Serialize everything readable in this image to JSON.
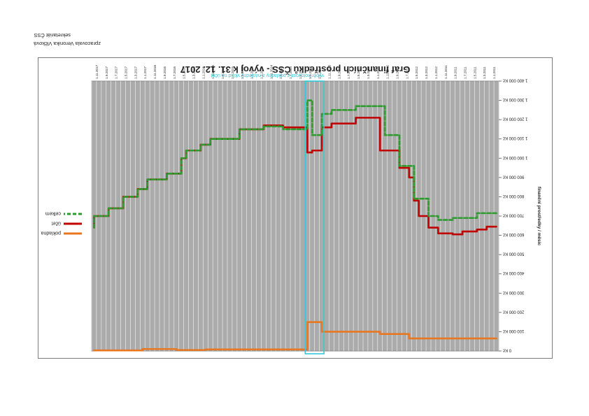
{
  "credits": {
    "author": "zpracovala Veronika Vlčková",
    "office": "sekretariát ČSS"
  },
  "chart_data": {
    "type": "line",
    "title": "Graf finančních prostředků ČSS - vývoj k 31. 12. 2017",
    "ylabel": "finanční prostředky / měsíc",
    "xlabel": "",
    "ylim": [
      -1400000,
      0
    ],
    "ytick_values": [
      0,
      -100000,
      -200000,
      -300000,
      -400000,
      -500000,
      -600000,
      -700000,
      -800000,
      -900000,
      -1000000,
      -1100000,
      -1200000,
      -1300000,
      -1400000
    ],
    "ytick_labels": [
      "0 Kč",
      "100 000 Kč",
      "200 000 Kč",
      "300 000 Kč",
      "400 000 Kč",
      "500 000 Kč",
      "600 000 Kč",
      "700 000 Kč",
      "800 000 Kč",
      "900 000 Kč",
      "1 000 000 Kč",
      "1 100 000 Kč",
      "1 200 000 Kč",
      "1 300 000 Kč",
      "1 400 000 Kč"
    ],
    "x_start": "2011-01",
    "x_end": "2017-12",
    "grid": true,
    "legend_position": "right",
    "annotation": {
      "text": "výběr hotovosti z pokladny a následný vklad na účet",
      "x_from": "2014-01",
      "x_to": "2014-04",
      "color": "#33c8d6"
    },
    "series": [
      {
        "name": "pokladna",
        "color": "#e87722",
        "dash": "solid",
        "points": [
          [
            "2011-01",
            -65000
          ],
          [
            "2011-08",
            -65000
          ],
          [
            "2012-06",
            -65000
          ],
          [
            "2012-07",
            -88000
          ],
          [
            "2012-12",
            -88000
          ],
          [
            "2013-01",
            -100000
          ],
          [
            "2013-12",
            -100000
          ],
          [
            "2014-01",
            -150000
          ],
          [
            "2014-03",
            -150000
          ],
          [
            "2014-04",
            -8000
          ],
          [
            "2015-06",
            -8000
          ],
          [
            "2016-01",
            -5000
          ],
          [
            "2016-06",
            -5000
          ],
          [
            "2016-07",
            -10000
          ],
          [
            "2017-01",
            -10000
          ],
          [
            "2017-02",
            -3000
          ],
          [
            "2017-12",
            -3000
          ]
        ]
      },
      {
        "name": "účet",
        "color": "#c00000",
        "dash": "solid",
        "points": [
          [
            "2011-01",
            -645000
          ],
          [
            "2011-03",
            -630000
          ],
          [
            "2011-05",
            -620000
          ],
          [
            "2011-08",
            -605000
          ],
          [
            "2011-10",
            -610000
          ],
          [
            "2012-01",
            -640000
          ],
          [
            "2012-03",
            -700000
          ],
          [
            "2012-05",
            -780000
          ],
          [
            "2012-06",
            -900000
          ],
          [
            "2012-07",
            -950000
          ],
          [
            "2012-09",
            -1040000
          ],
          [
            "2013-01",
            -1210000
          ],
          [
            "2013-06",
            -1180000
          ],
          [
            "2013-11",
            -1160000
          ],
          [
            "2014-01",
            -1040000
          ],
          [
            "2014-03",
            -1030000
          ],
          [
            "2014-04",
            -1160000
          ],
          [
            "2014-09",
            -1170000
          ],
          [
            "2015-01",
            -1150000
          ],
          [
            "2015-06",
            -1100000
          ],
          [
            "2015-12",
            -1070000
          ],
          [
            "2016-02",
            -1040000
          ],
          [
            "2016-05",
            -1000000
          ],
          [
            "2016-06",
            -920000
          ],
          [
            "2016-09",
            -890000
          ],
          [
            "2017-01",
            -840000
          ],
          [
            "2017-03",
            -800000
          ],
          [
            "2017-06",
            -740000
          ],
          [
            "2017-09",
            -700000
          ],
          [
            "2017-12",
            -640000
          ]
        ]
      },
      {
        "name": "celkem",
        "color": "#2e9b2e",
        "dash": "dashed",
        "points": [
          [
            "2011-01",
            -715000
          ],
          [
            "2011-05",
            -690000
          ],
          [
            "2011-10",
            -680000
          ],
          [
            "2012-01",
            -700000
          ],
          [
            "2012-03",
            -790000
          ],
          [
            "2012-06",
            -960000
          ],
          [
            "2012-09",
            -1120000
          ],
          [
            "2012-12",
            -1270000
          ],
          [
            "2013-06",
            -1250000
          ],
          [
            "2013-11",
            -1230000
          ],
          [
            "2014-01",
            -1120000
          ],
          [
            "2014-03",
            -1300000
          ],
          [
            "2014-04",
            -1150000
          ],
          [
            "2014-09",
            -1165000
          ],
          [
            "2015-01",
            -1150000
          ],
          [
            "2015-06",
            -1100000
          ],
          [
            "2015-12",
            -1070000
          ],
          [
            "2016-02",
            -1040000
          ],
          [
            "2016-05",
            -1000000
          ],
          [
            "2016-06",
            -920000
          ],
          [
            "2016-09",
            -890000
          ],
          [
            "2017-01",
            -840000
          ],
          [
            "2017-03",
            -800000
          ],
          [
            "2017-06",
            -740000
          ],
          [
            "2017-09",
            -700000
          ],
          [
            "2017-12",
            -640000
          ]
        ]
      }
    ]
  }
}
